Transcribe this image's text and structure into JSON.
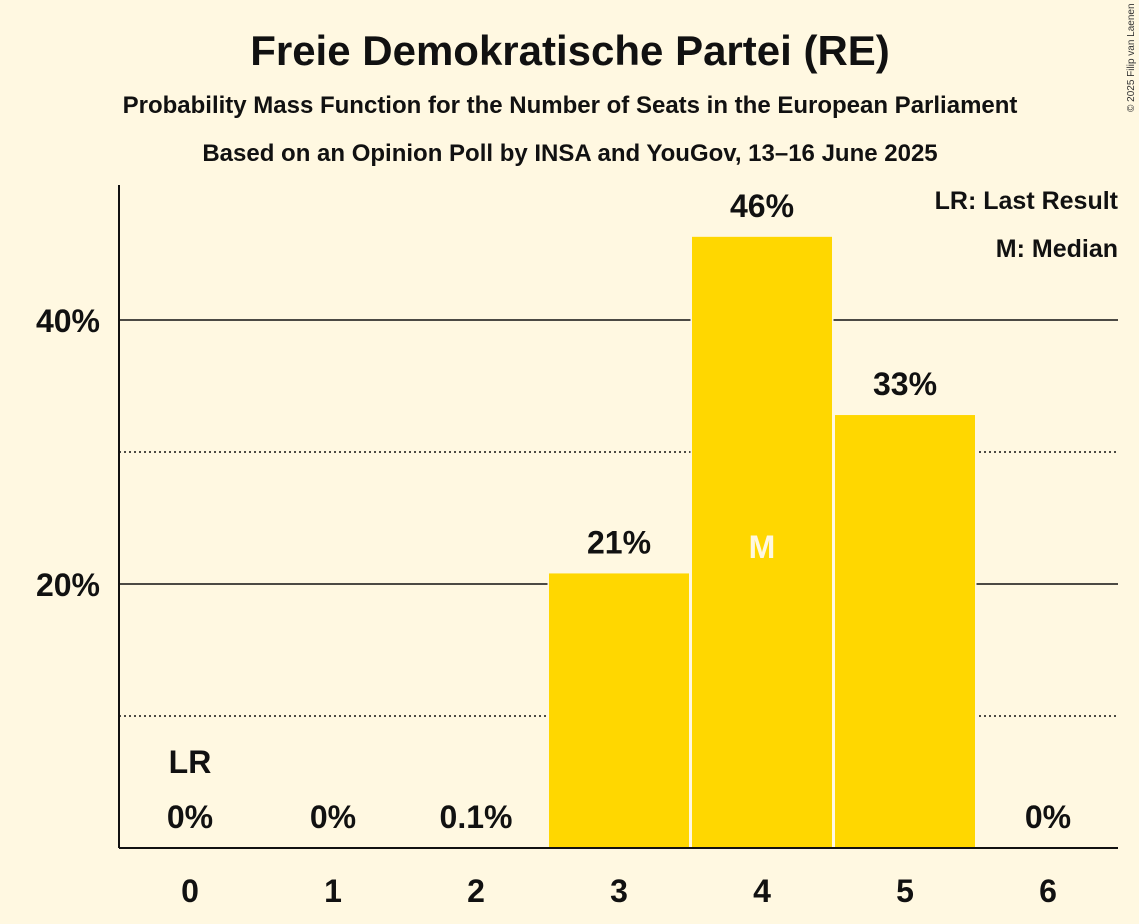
{
  "chart_data": {
    "type": "bar",
    "title": "Freie Demokratische Partei (RE)",
    "subtitle": "Probability Mass Function for the Number of Seats in the European Parliament",
    "subtitle2": "Based on an Opinion Poll by INSA and YouGov, 13–16 June 2025",
    "copyright": "© 2025 Filip van Laenen",
    "categories": [
      "0",
      "1",
      "2",
      "3",
      "4",
      "5",
      "6"
    ],
    "values": [
      0,
      0,
      0.1,
      20.8,
      46.3,
      32.8,
      0
    ],
    "value_labels": [
      "0%",
      "0%",
      "0.1%",
      "21%",
      "46%",
      "33%",
      "0%"
    ],
    "ylim": [
      0,
      50
    ],
    "major_gridlines": [
      20,
      40
    ],
    "minor_gridlines": [
      10,
      30
    ],
    "ytick_labels": [
      {
        "value": 20,
        "label": "20%"
      },
      {
        "value": 40,
        "label": "40%"
      }
    ],
    "bar_color": "#ffd700",
    "background": "#fff8e1",
    "last_result": {
      "category": "0",
      "marker": "LR"
    },
    "median": {
      "category": "4",
      "marker": "M"
    },
    "legend": {
      "placement": "top-right",
      "items": [
        "LR: Last Result",
        "M: Median"
      ]
    }
  }
}
